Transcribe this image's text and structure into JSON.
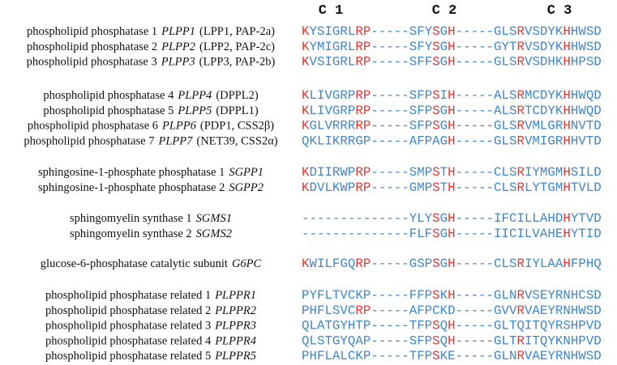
{
  "headers": [
    "C 1",
    "C 2",
    "C 3"
  ],
  "colors": {
    "red": "#e3342f",
    "blue": "#3f86c8"
  },
  "groups": [
    {
      "rows": [
        {
          "name": "phospholipid phosphatase 1",
          "gene": "PLPP1",
          "alias": "(LPP1, PAP-2a)",
          "sequence": [
            {
              "text": "K",
              "red": true
            },
            {
              "text": "YSIGRL"
            },
            {
              "text": "RP",
              "red": true
            },
            {
              "text": "-----SFY"
            },
            {
              "text": "S",
              "red": true
            },
            {
              "text": "G"
            },
            {
              "text": "H",
              "red": true
            },
            {
              "text": "-----GLS"
            },
            {
              "text": "R",
              "red": true
            },
            {
              "text": "VSDYK"
            },
            {
              "text": "H",
              "red": true
            },
            {
              "text": "HWSD"
            }
          ]
        },
        {
          "name": "phospholipid phosphatase 2",
          "gene": "PLPP2",
          "alias": "(LPP2, PAP-2c)",
          "sequence": [
            {
              "text": "K",
              "red": true
            },
            {
              "text": "YMIGRL"
            },
            {
              "text": "RP",
              "red": true
            },
            {
              "text": "-----SFY"
            },
            {
              "text": "S",
              "red": true
            },
            {
              "text": "G"
            },
            {
              "text": "H",
              "red": true
            },
            {
              "text": "-----GYT"
            },
            {
              "text": "R",
              "red": true
            },
            {
              "text": "VSDYK"
            },
            {
              "text": "H",
              "red": true
            },
            {
              "text": "HWSD"
            }
          ]
        },
        {
          "name": "phospholipid phosphatase 3",
          "gene": "PLPP3",
          "alias": "(LPP3, PAP-2b)",
          "sequence": [
            {
              "text": "K",
              "red": true
            },
            {
              "text": "VSIGRL"
            },
            {
              "text": "RP",
              "red": true
            },
            {
              "text": "-----SFF"
            },
            {
              "text": "S",
              "red": true
            },
            {
              "text": "G"
            },
            {
              "text": "H",
              "red": true
            },
            {
              "text": "-----GLS"
            },
            {
              "text": "R",
              "red": true
            },
            {
              "text": "VSDHK"
            },
            {
              "text": "H",
              "red": true
            },
            {
              "text": "HPSD"
            }
          ]
        }
      ]
    },
    {
      "rows": [
        {
          "name": "phospholipid phosphatase 4",
          "gene": "PLPP4",
          "alias": "(DPPL2)",
          "sequence": [
            {
              "text": "K",
              "red": true
            },
            {
              "text": "LIVGRP"
            },
            {
              "text": "RP",
              "red": true
            },
            {
              "text": "-----SFP"
            },
            {
              "text": "S",
              "red": true
            },
            {
              "text": "I"
            },
            {
              "text": "H",
              "red": true
            },
            {
              "text": "-----ALS"
            },
            {
              "text": "R",
              "red": true
            },
            {
              "text": "MCDYK"
            },
            {
              "text": "H",
              "red": true
            },
            {
              "text": "HWQD"
            }
          ]
        },
        {
          "name": "phospholipid phosphatase 5",
          "gene": "PLPP5",
          "alias": "(DPPL1)",
          "sequence": [
            {
              "text": "K",
              "red": true
            },
            {
              "text": "LIVGRP"
            },
            {
              "text": "RP",
              "red": true
            },
            {
              "text": "-----SFP"
            },
            {
              "text": "S",
              "red": true
            },
            {
              "text": "G"
            },
            {
              "text": "H",
              "red": true
            },
            {
              "text": "-----ALS"
            },
            {
              "text": "R",
              "red": true
            },
            {
              "text": "TCDYK"
            },
            {
              "text": "H",
              "red": true
            },
            {
              "text": "HWQD"
            }
          ]
        },
        {
          "name": "phospholipid phosphatase 6",
          "gene": "PLPP6",
          "alias": "(PDP1, CSS2β)",
          "sequence": [
            {
              "text": "K",
              "red": true
            },
            {
              "text": "GLVRRR"
            },
            {
              "text": "RP",
              "red": true
            },
            {
              "text": "-----SFP"
            },
            {
              "text": "S",
              "red": true
            },
            {
              "text": "G"
            },
            {
              "text": "H",
              "red": true
            },
            {
              "text": "-----GLS"
            },
            {
              "text": "R",
              "red": true
            },
            {
              "text": "VMLGR"
            },
            {
              "text": "H",
              "red": true
            },
            {
              "text": "NVTD"
            }
          ]
        },
        {
          "name": "phospholipid phosphatase 7",
          "gene": "PLPP7",
          "alias": "(NET39, CSS2α)",
          "sequence": [
            {
              "text": "QKLIKRRGP-----AFPAG"
            },
            {
              "text": "H",
              "red": true
            },
            {
              "text": "-----GLS"
            },
            {
              "text": "R",
              "red": true
            },
            {
              "text": "VMIGR"
            },
            {
              "text": "H",
              "red": true
            },
            {
              "text": "HVTD"
            }
          ]
        }
      ]
    },
    {
      "rows": [
        {
          "name": "sphingosine-1-phosphate phosphatase 1",
          "gene": "SGPP1",
          "sequence": [
            {
              "text": "K",
              "red": true
            },
            {
              "text": "DIIRWP"
            },
            {
              "text": "RP",
              "red": true
            },
            {
              "text": "-----SMP"
            },
            {
              "text": "S",
              "red": true
            },
            {
              "text": "T"
            },
            {
              "text": "H",
              "red": true
            },
            {
              "text": "-----CLS"
            },
            {
              "text": "R",
              "red": true
            },
            {
              "text": "IYMGM"
            },
            {
              "text": "H",
              "red": true
            },
            {
              "text": "SILD"
            }
          ]
        },
        {
          "name": "sphingosine-1-phosphate phosphatase 2",
          "gene": "SGPP2",
          "sequence": [
            {
              "text": "K",
              "red": true
            },
            {
              "text": "DVLKWP"
            },
            {
              "text": "RP",
              "red": true
            },
            {
              "text": "-----GMP"
            },
            {
              "text": "S",
              "red": true
            },
            {
              "text": "T"
            },
            {
              "text": "H",
              "red": true
            },
            {
              "text": "-----CLS"
            },
            {
              "text": "R",
              "red": true
            },
            {
              "text": "LYTGM"
            },
            {
              "text": "H",
              "red": true
            },
            {
              "text": "TVLD"
            }
          ]
        }
      ]
    },
    {
      "rows": [
        {
          "name": "sphingomyelin synthase 1",
          "gene": "SGMS1",
          "sequence": [
            {
              "text": "--------------YLY"
            },
            {
              "text": "S",
              "red": true
            },
            {
              "text": "G"
            },
            {
              "text": "H",
              "red": true
            },
            {
              "text": "-----IFCILLAHD"
            },
            {
              "text": "H",
              "red": true
            },
            {
              "text": "YTVD"
            }
          ]
        },
        {
          "name": "sphingomyelin synthase 2",
          "gene": "SGMS2",
          "sequence": [
            {
              "text": "--------------FLF"
            },
            {
              "text": "S",
              "red": true
            },
            {
              "text": "G"
            },
            {
              "text": "H",
              "red": true
            },
            {
              "text": "-----IICILVAHE"
            },
            {
              "text": "H",
              "red": true
            },
            {
              "text": "YTID"
            }
          ]
        }
      ]
    },
    {
      "rows": [
        {
          "name": "glucose-6-phosphatase catalytic subunit",
          "gene": "G6PC",
          "sequence": [
            {
              "text": "K",
              "red": true
            },
            {
              "text": "WILFGQ"
            },
            {
              "text": "RP",
              "red": true
            },
            {
              "text": "-----GSP"
            },
            {
              "text": "S",
              "red": true
            },
            {
              "text": "G"
            },
            {
              "text": "H",
              "red": true
            },
            {
              "text": "-----CLS"
            },
            {
              "text": "R",
              "red": true
            },
            {
              "text": "IYLAA"
            },
            {
              "text": "H",
              "red": true
            },
            {
              "text": "FPHQ"
            }
          ]
        }
      ]
    },
    {
      "rows": [
        {
          "name": "phospholipid phosphatase related 1",
          "gene": "PLPPR1",
          "sequence": [
            {
              "text": "PYFLTVCKP-----FFP"
            },
            {
              "text": "S",
              "red": true
            },
            {
              "text": "K"
            },
            {
              "text": "H",
              "red": true
            },
            {
              "text": "-----GLN"
            },
            {
              "text": "R",
              "red": true
            },
            {
              "text": "VSEYRNHCSD"
            }
          ]
        },
        {
          "name": "phospholipid phosphatase related 2",
          "gene": "PLPPR2",
          "sequence": [
            {
              "text": "PHFLSVC"
            },
            {
              "text": "RP",
              "red": true
            },
            {
              "text": "-----AFPCKD-----GVV"
            },
            {
              "text": "R",
              "red": true
            },
            {
              "text": "VAEYRNHWSD"
            }
          ]
        },
        {
          "name": "phospholipid phosphatase related 3",
          "gene": "PLPPR3",
          "sequence": [
            {
              "text": "QLATGYHTP-----TFP"
            },
            {
              "text": "S",
              "red": true
            },
            {
              "text": "Q"
            },
            {
              "text": "H",
              "red": true
            },
            {
              "text": "-----GLTQITQYRSHPVD"
            }
          ]
        },
        {
          "name": "phospholipid phosphatase related 4",
          "gene": "PLPPR4",
          "sequence": [
            {
              "text": "QLSTGYQAP-----SFP"
            },
            {
              "text": "S",
              "red": true
            },
            {
              "text": "Q"
            },
            {
              "text": "H",
              "red": true
            },
            {
              "text": "-----GLT"
            },
            {
              "text": "R",
              "red": true
            },
            {
              "text": "ITQYKNHPVD"
            }
          ]
        },
        {
          "name": "phospholipid phosphatase related 5",
          "gene": "PLPPR5",
          "sequence": [
            {
              "text": "PHFLALCKP-----TFP"
            },
            {
              "text": "S",
              "red": true
            },
            {
              "text": "KE-----GLN"
            },
            {
              "text": "R",
              "red": true
            },
            {
              "text": "VAEYRNHWSD"
            }
          ]
        }
      ]
    }
  ]
}
